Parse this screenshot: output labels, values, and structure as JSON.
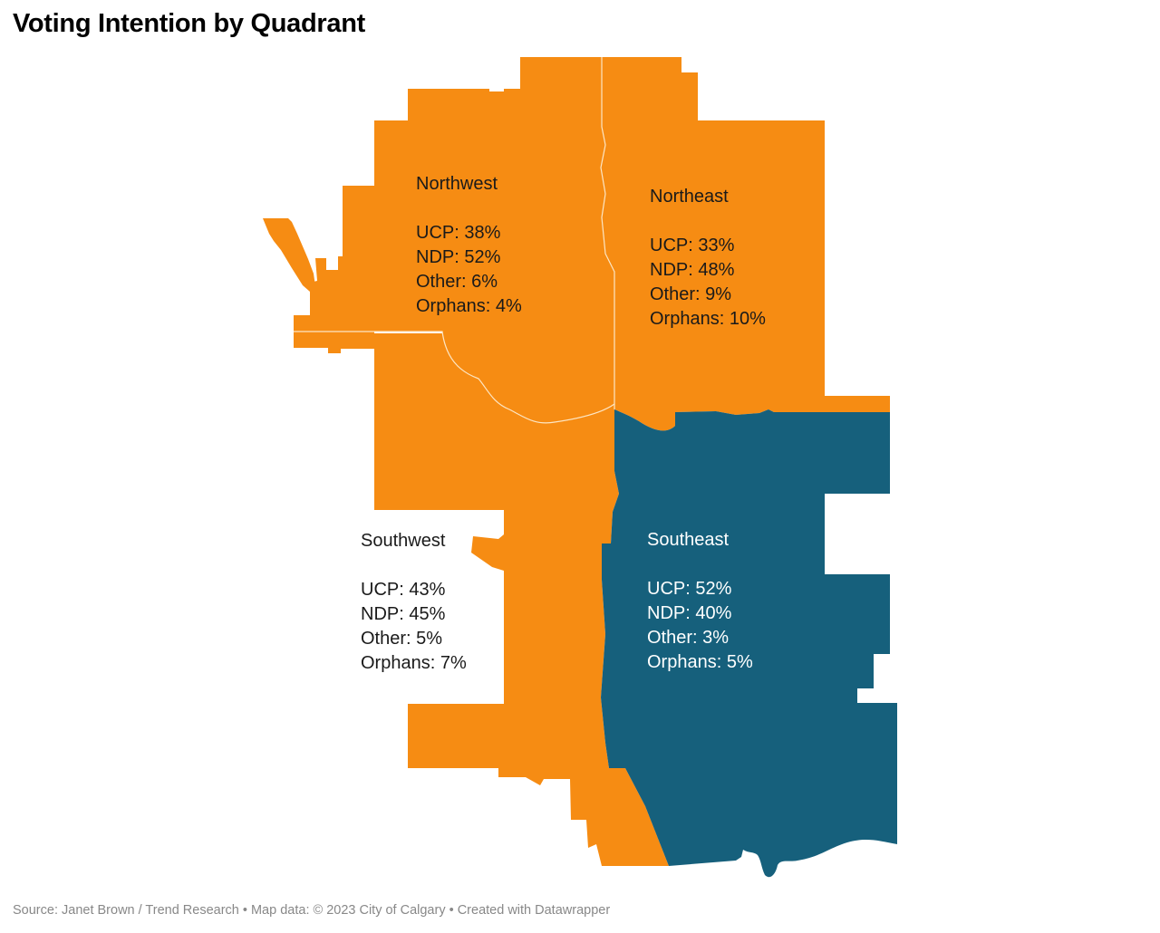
{
  "title": "Voting Intention by Quadrant",
  "colors": {
    "ndp_lead": "#f68c13",
    "ucp_lead": "#16607c",
    "background": "#ffffff",
    "footer_text": "#888888"
  },
  "regions": {
    "northwest": {
      "name": "Northwest",
      "lines": [
        "UCP: 38%",
        "NDP: 52%",
        "Other: 6%",
        "Orphans: 4%"
      ],
      "fill_key": "ndp_lead"
    },
    "northeast": {
      "name": "Northeast",
      "lines": [
        "UCP: 33%",
        "NDP: 48%",
        "Other: 9%",
        "Orphans: 10%"
      ],
      "fill_key": "ndp_lead"
    },
    "southwest": {
      "name": "Southwest",
      "lines": [
        "UCP: 43%",
        "NDP: 45%",
        "Other: 5%",
        "Orphans: 7%"
      ],
      "fill_key": "ndp_lead"
    },
    "southeast": {
      "name": "Southeast",
      "lines": [
        "UCP: 52%",
        "NDP: 40%",
        "Other: 3%",
        "Orphans: 5%"
      ],
      "fill_key": "ucp_lead"
    }
  },
  "footer": "Source: Janet Brown / Trend Research • Map data: © 2023 City of Calgary • Created with Datawrapper"
}
